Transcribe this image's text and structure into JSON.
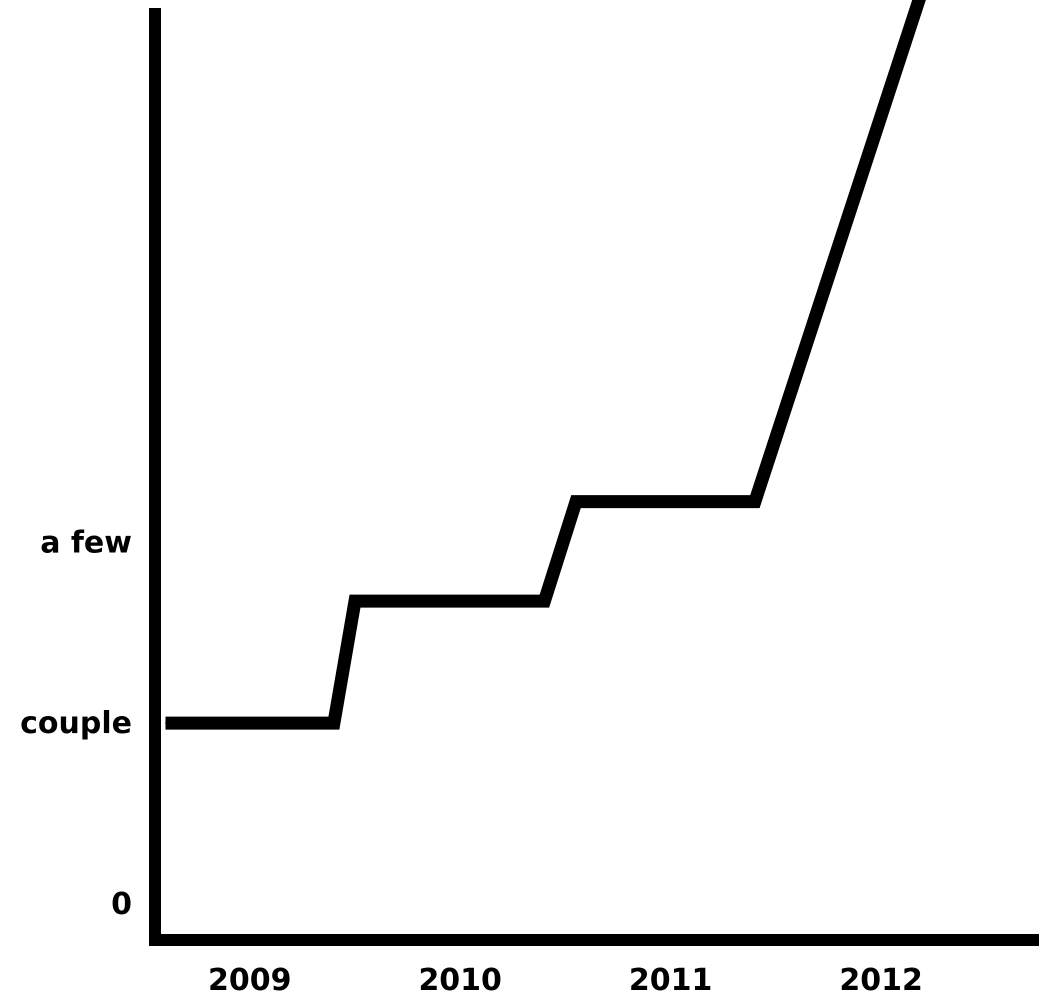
{
  "chart_data": {
    "type": "line",
    "title": "",
    "xlabel": "",
    "ylabel": "",
    "x_ticks": [
      "2009",
      "2010",
      "2011",
      "2012"
    ],
    "y_ticks": [
      {
        "label": "0",
        "value": 0
      },
      {
        "label": "couple",
        "value": 2
      },
      {
        "label": "a few",
        "value": 4
      }
    ],
    "xlim": [
      2008.6,
      2012.8
    ],
    "ylim": [
      -0.4,
      10
    ],
    "grid": false,
    "series": [
      {
        "color": "#000000",
        "points": [
          {
            "x": 2008.65,
            "y": 2.0
          },
          {
            "x": 2009.45,
            "y": 2.0
          },
          {
            "x": 2009.55,
            "y": 3.35
          },
          {
            "x": 2010.45,
            "y": 3.35
          },
          {
            "x": 2010.6,
            "y": 4.45
          },
          {
            "x": 2011.45,
            "y": 4.45
          },
          {
            "x": 2012.3,
            "y": 10.5
          }
        ]
      }
    ]
  }
}
